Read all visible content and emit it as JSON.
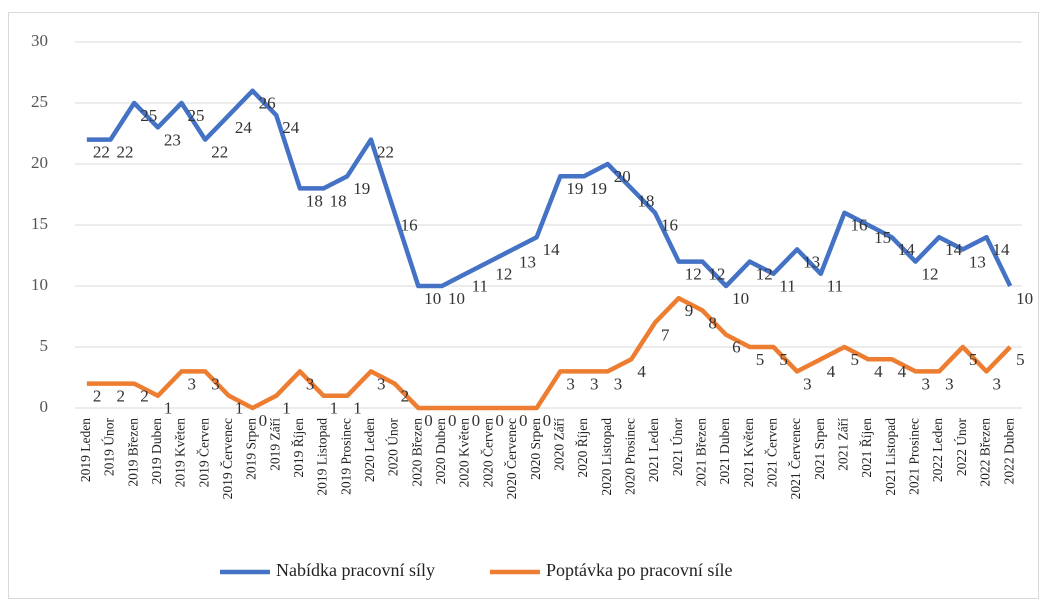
{
  "chart_data": {
    "type": "line",
    "categories": [
      "2019 Leden",
      "2019 Únor",
      "2019 Březen",
      "2019 Duben",
      "2019 Květen",
      "2019 Červen",
      "2019 Červenec",
      "2019 Srpen",
      "2019 Září",
      "2019 Říjen",
      "2019 Listopad",
      "2019 Prosinec",
      "2020 Leden",
      "2020 Únor",
      "2020 Březen",
      "2020 Duben",
      "2020 Květen",
      "2020 Červen",
      "2020 Červenec",
      "2020 Srpen",
      "2020 Září",
      "2020 Říjen",
      "2020 Listopad",
      "2020 Prosinec",
      "2021 Leden",
      "2021 Únor",
      "2021 Březen",
      "2021 Duben",
      "2021 Květen",
      "2021 Červen",
      "2021 Červenec",
      "2021 Srpen",
      "2021 Září",
      "2021 Říjen",
      "2021 Listopad",
      "2021 Prosinec",
      "2022 Leden",
      "2022 Únor",
      "2022 Březen",
      "2022 Duben"
    ],
    "series": [
      {
        "name": "Nabídka pracovní síly",
        "color": "#4472c4",
        "values": [
          22,
          22,
          25,
          23,
          25,
          22,
          24,
          26,
          24,
          18,
          18,
          19,
          22,
          16,
          10,
          10,
          11,
          12,
          13,
          14,
          19,
          19,
          20,
          18,
          16,
          12,
          12,
          10,
          12,
          11,
          13,
          11,
          16,
          15,
          14,
          12,
          14,
          13,
          14,
          10
        ]
      },
      {
        "name": "Poptávka po pracovní síle",
        "color": "#ed7d31",
        "values": [
          2,
          2,
          2,
          1,
          3,
          3,
          1,
          0,
          1,
          3,
          1,
          1,
          3,
          2,
          0,
          0,
          0,
          0,
          0,
          0,
          3,
          3,
          3,
          4,
          7,
          9,
          8,
          6,
          5,
          5,
          3,
          4,
          5,
          4,
          4,
          3,
          3,
          5,
          3,
          5
        ]
      }
    ],
    "ylim": [
      0,
      30
    ],
    "yticks": [
      0,
      5,
      10,
      15,
      20,
      25,
      30
    ],
    "grid": true,
    "legend": "bottom"
  }
}
